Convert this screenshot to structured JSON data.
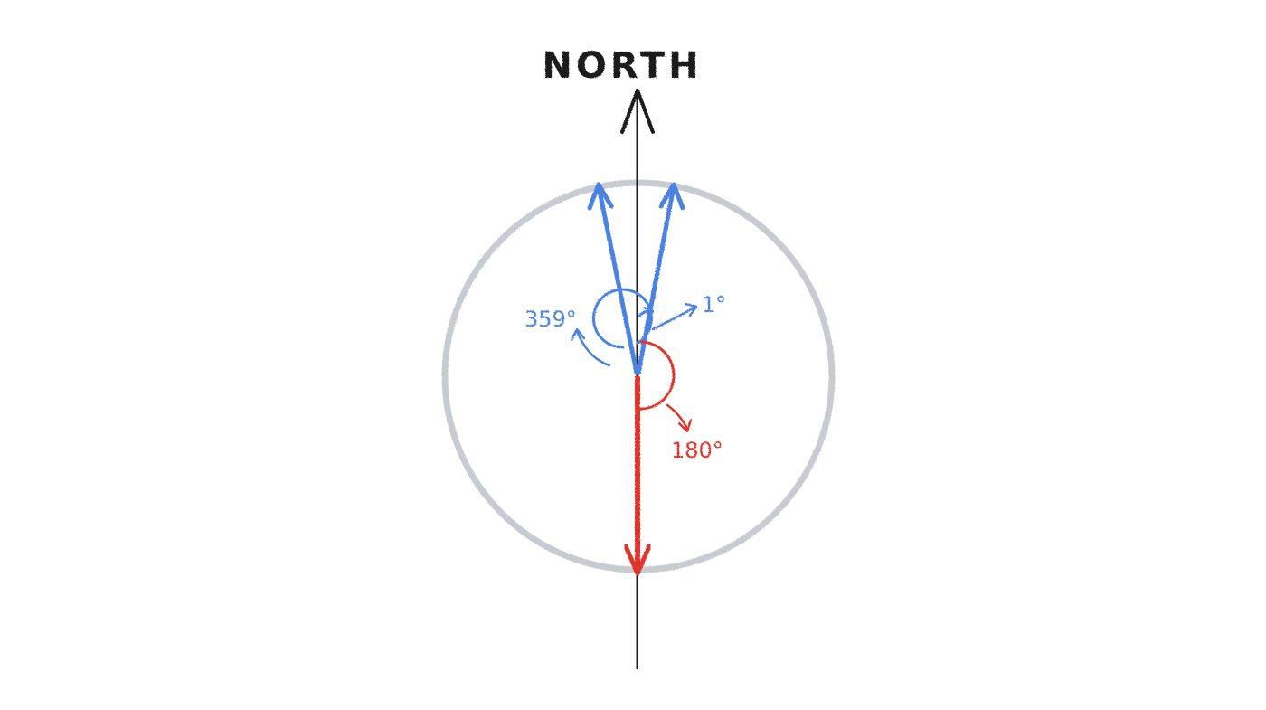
{
  "diagram": {
    "title": "NORTH",
    "angles": {
      "left": "359°",
      "right": "1°",
      "down": "180°"
    }
  },
  "colors": {
    "axis": "#1a1a1a",
    "circle": "#c8cbd2",
    "blue": "#4b82e0",
    "red": "#e0352b"
  },
  "headings_deg": {
    "left_arrow": 359,
    "right_arrow": 1,
    "down_arrow": 180
  }
}
